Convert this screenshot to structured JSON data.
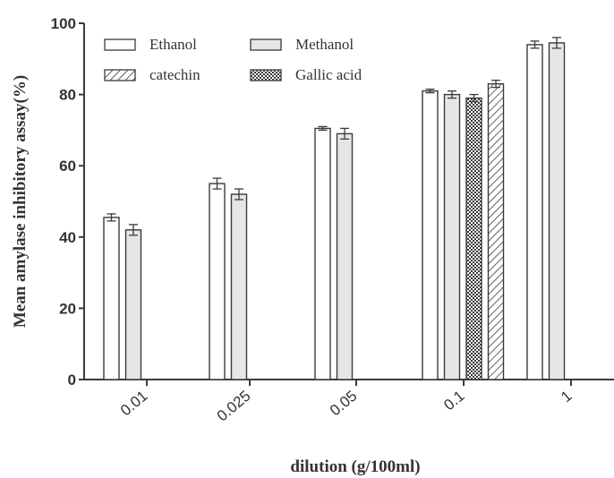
{
  "chart_data": {
    "type": "bar",
    "ylabel": "Mean amylase inhibitory assay(%)",
    "xlabel": "dilution (g/100ml)",
    "categories": [
      "0.01",
      "0.025",
      "0.05",
      "0.1",
      "1"
    ],
    "ylim": [
      0,
      100
    ],
    "yticks": [
      "0",
      "20",
      "40",
      "60",
      "80",
      "100"
    ],
    "grid": false,
    "legend_position": "top-left",
    "series": [
      {
        "name": "Ethanol",
        "pattern": "empty",
        "values": [
          45.5,
          55.0,
          70.5,
          81.0,
          94.0
        ],
        "errors": [
          1.0,
          1.5,
          0.5,
          0.5,
          1.0
        ]
      },
      {
        "name": "Methanol",
        "pattern": "light-gray",
        "values": [
          42.0,
          52.0,
          69.0,
          80.0,
          94.5
        ],
        "errors": [
          1.5,
          1.5,
          1.5,
          1.0,
          1.5
        ]
      },
      {
        "name": "catechin",
        "pattern": "diagonal-hatch",
        "values": [
          null,
          null,
          null,
          83.0,
          null
        ],
        "errors": [
          null,
          null,
          null,
          1.0,
          null
        ]
      },
      {
        "name": "Gallic acid",
        "pattern": "checker",
        "values": [
          null,
          null,
          null,
          79.0,
          null
        ],
        "errors": [
          null,
          null,
          null,
          1.0,
          null
        ]
      }
    ],
    "colors": {
      "axis": "#3a3a3a",
      "bar_stroke": "#3a3a3a",
      "methanol_fill": "#e6e6e6"
    }
  }
}
